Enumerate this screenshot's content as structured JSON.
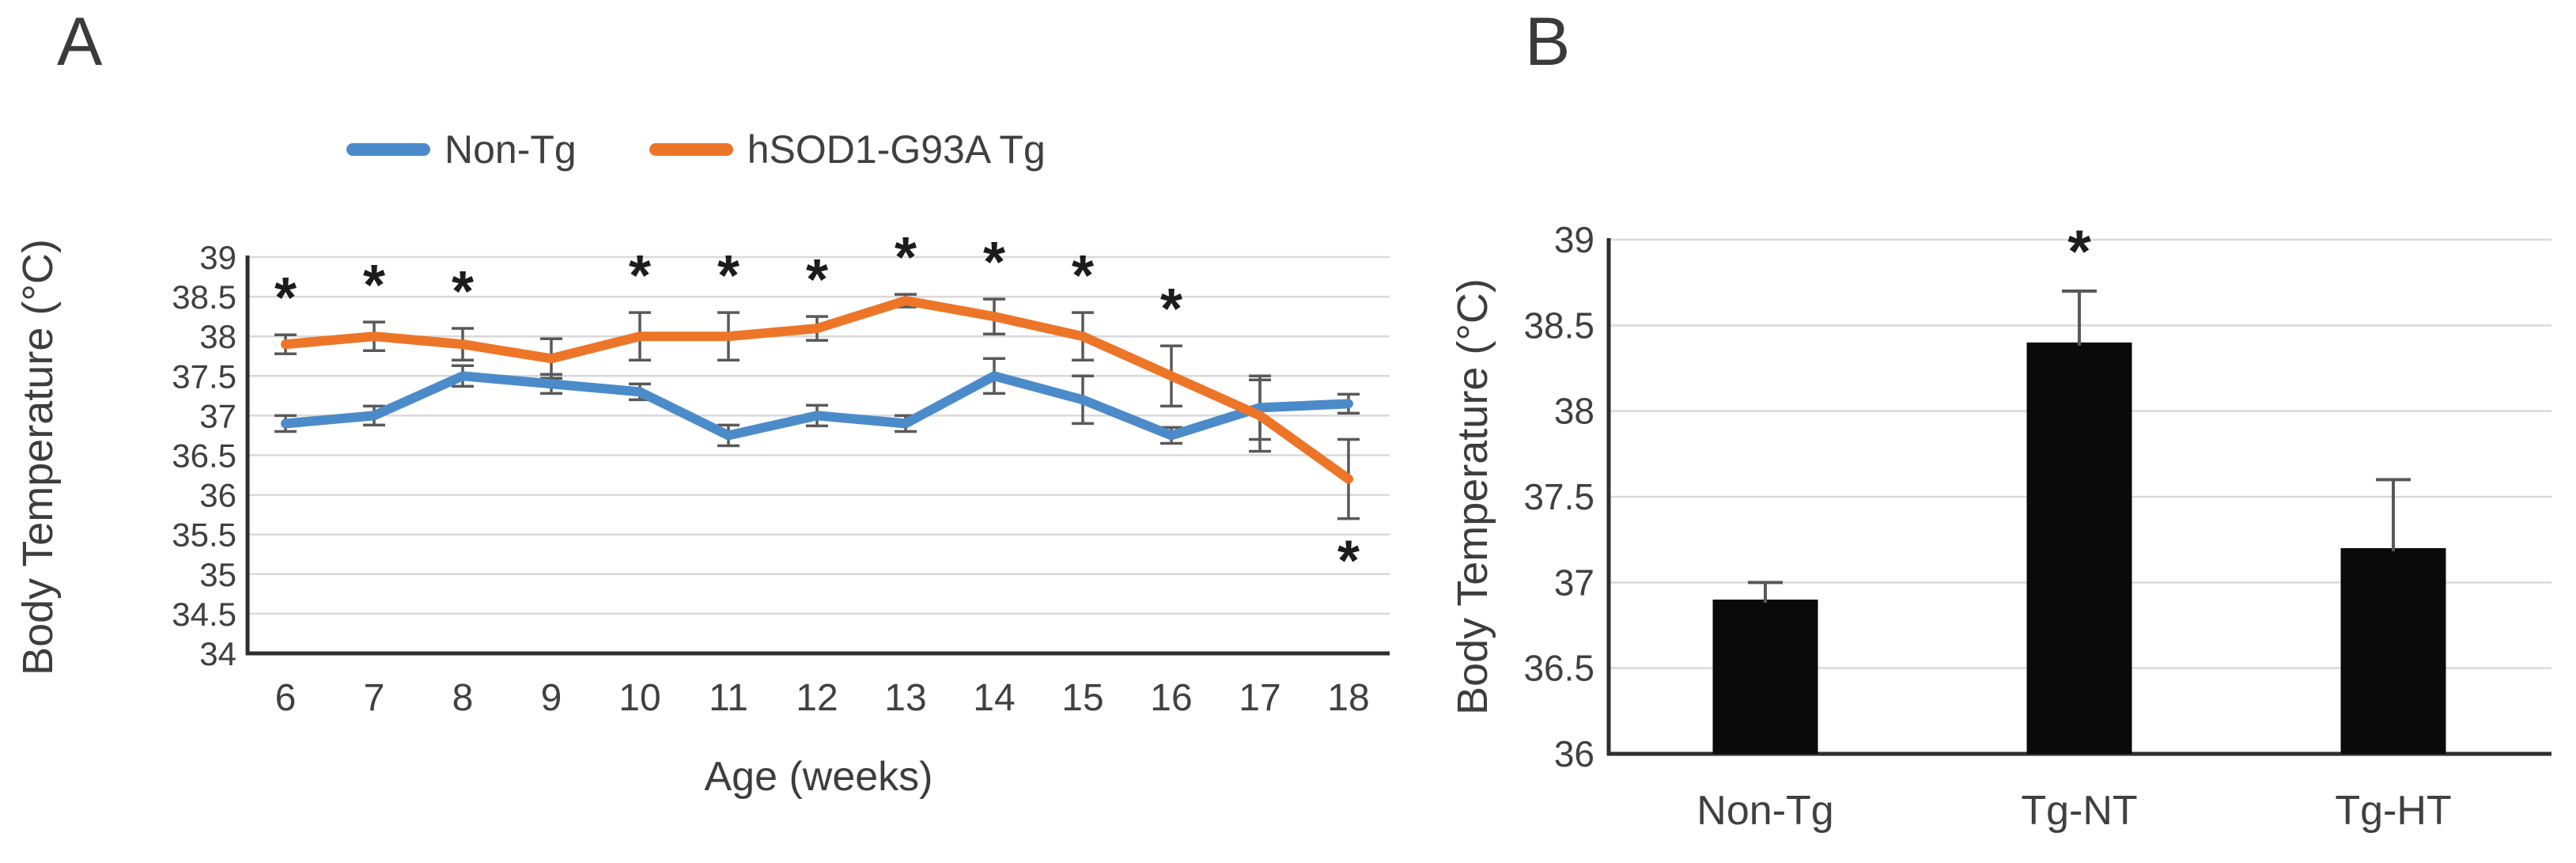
{
  "panel_a": {
    "label": "A"
  },
  "panel_b": {
    "label": "B"
  },
  "chart_data": [
    {
      "panel": "A",
      "type": "line",
      "xlabel": "Age (weeks)",
      "ylabel": "Body Temperature (°C)",
      "x": [
        6,
        7,
        8,
        9,
        10,
        11,
        12,
        13,
        14,
        15,
        16,
        17,
        18
      ],
      "x_ticks": [
        "6",
        "7",
        "8",
        "9",
        "10",
        "11",
        "12",
        "13",
        "14",
        "15",
        "16",
        "17",
        "18"
      ],
      "y_ticks": [
        "39",
        "38.5",
        "38",
        "37.5",
        "37",
        "36.5",
        "36",
        "35.5",
        "35",
        "34.5",
        "34"
      ],
      "ylim": [
        34,
        39
      ],
      "grid": true,
      "legend_position": "top-center",
      "series": [
        {
          "name": "Non-Tg",
          "color": "#4C8BC9",
          "values": [
            36.9,
            37.0,
            37.5,
            37.4,
            37.3,
            36.75,
            37.0,
            36.9,
            37.5,
            37.2,
            36.75,
            37.1,
            37.15
          ],
          "errors": [
            0.1,
            0.12,
            0.13,
            0.12,
            0.1,
            0.13,
            0.13,
            0.1,
            0.22,
            0.3,
            0.1,
            0.4,
            0.12
          ]
        },
        {
          "name": "hSOD1-G93A Tg",
          "color": "#ED7528",
          "values": [
            37.9,
            38.0,
            37.9,
            37.72,
            38.0,
            38.0,
            38.1,
            38.45,
            38.25,
            38.0,
            37.5,
            37.0,
            36.2
          ],
          "errors": [
            0.12,
            0.18,
            0.2,
            0.25,
            0.3,
            0.3,
            0.15,
            0.08,
            0.22,
            0.3,
            0.38,
            0.45,
            0.5
          ]
        }
      ],
      "significance": {
        "symbol": "*",
        "above_weeks": [
          6,
          7,
          8,
          10,
          11,
          12,
          13,
          14,
          15,
          16
        ],
        "below_weeks": [
          18
        ]
      }
    },
    {
      "panel": "B",
      "type": "bar",
      "ylabel": "Body Temperature (°C)",
      "categories": [
        "Non-Tg",
        "Tg-NT",
        "Tg-HT"
      ],
      "values": [
        36.9,
        38.4,
        37.2
      ],
      "errors": [
        0.1,
        0.3,
        0.4
      ],
      "y_ticks": [
        "39",
        "38.5",
        "38",
        "37.5",
        "37",
        "36.5",
        "36"
      ],
      "ylim": [
        36,
        39
      ],
      "grid": true,
      "bar_color": "#0A0A0A",
      "significance": {
        "symbol": "*",
        "categories": [
          "Tg-NT"
        ]
      }
    }
  ],
  "colors": {
    "gridline": "#D9D9D9",
    "axis": "#2E2E2E",
    "tick_text": "#404040",
    "error_bar": "#595959",
    "asterisk": "#1C1C1C"
  }
}
